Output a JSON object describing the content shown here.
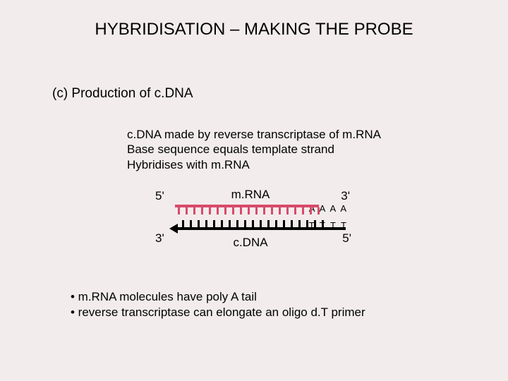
{
  "title": "HYBRIDISATION – MAKING THE PROBE",
  "subtitle": "(c) Production of c.DNA",
  "description": {
    "line1": "c.DNA made by reverse transcriptase of m.RNA",
    "line2": "Base sequence equals template strand",
    "line3": "Hybridises with m.RNA"
  },
  "diagram": {
    "mrna_label": "m.RNA",
    "cdna_label": "c.DNA",
    "five_prime": "5'",
    "three_prime": "3'",
    "poly_a": "A A A A",
    "oligo_dt": "T T T T",
    "tooth_count": 19,
    "colors": {
      "mrna": "#d94a6a",
      "cdna": "#000000",
      "background": "#f2ecec",
      "text": "#000000"
    }
  },
  "bullets": {
    "b1": "• m.RNA molecules have poly A tail",
    "b2": "• reverse transcriptase can elongate an oligo d.T primer"
  }
}
